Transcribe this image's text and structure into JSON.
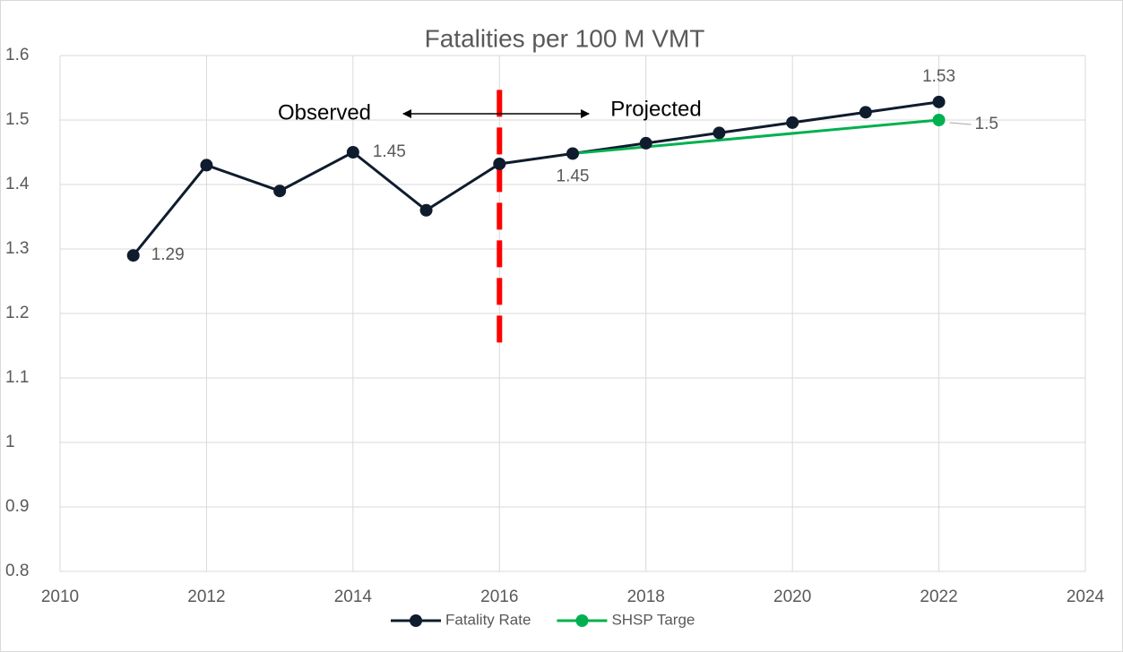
{
  "chart_data": {
    "type": "line",
    "title": "Fatalities per 100 M VMT",
    "xlim": [
      2010,
      2024
    ],
    "xticks": [
      2010,
      2012,
      2014,
      2016,
      2018,
      2020,
      2022,
      2024
    ],
    "ylim": [
      0.8,
      1.6
    ],
    "yticks": [
      0.8,
      0.9,
      1,
      1.1,
      1.2,
      1.3,
      1.4,
      1.5,
      1.6
    ],
    "grid": true,
    "legend": "bottom",
    "series": [
      {
        "name": "Fatality Rate",
        "color": "#0f1c2e",
        "x": [
          2011,
          2012,
          2013,
          2014,
          2015,
          2016,
          2017,
          2018,
          2019,
          2020,
          2021,
          2022
        ],
        "values": [
          1.29,
          1.43,
          1.39,
          1.45,
          1.36,
          1.432,
          1.448,
          1.464,
          1.48,
          1.496,
          1.512,
          1.528
        ],
        "value_labels": [
          "1.29",
          null,
          null,
          "1.45",
          null,
          null,
          "1.45",
          null,
          null,
          null,
          null,
          "1.53"
        ]
      },
      {
        "name": "SHSP Targe",
        "color": "#00b050",
        "x": [
          2017,
          2022
        ],
        "values": [
          1.448,
          1.5
        ],
        "value_labels": [
          null,
          "1.5"
        ]
      }
    ],
    "annotations": {
      "left": "Observed",
      "right": "Projected"
    },
    "divider": {
      "x": 2016,
      "y": [
        1.155,
        1.555
      ],
      "color": "#ff0000"
    }
  }
}
